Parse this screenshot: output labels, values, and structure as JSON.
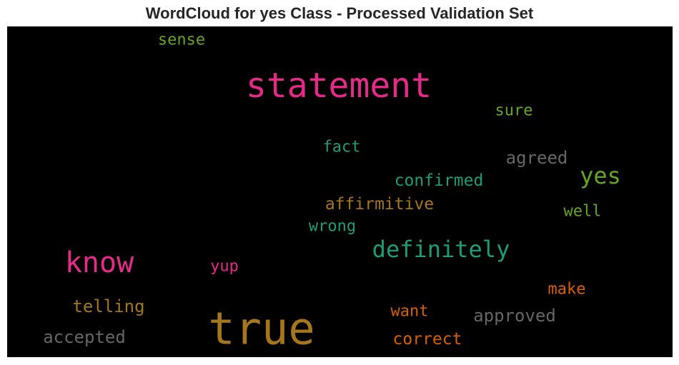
{
  "chart_data": {
    "type": "wordcloud",
    "title": "WordCloud for yes Class - Processed Validation Set",
    "background": "#000000",
    "words": [
      {
        "text": "sense",
        "color": "#66a61e",
        "weight": 22
      },
      {
        "text": "statement",
        "color": "#e7298a",
        "weight": 48
      },
      {
        "text": "sure",
        "color": "#66a61e",
        "weight": 22
      },
      {
        "text": "fact",
        "color": "#1b9e77",
        "weight": 22
      },
      {
        "text": "agreed",
        "color": "#666666",
        "weight": 24
      },
      {
        "text": "confirmed",
        "color": "#1b9e77",
        "weight": 23
      },
      {
        "text": "yes",
        "color": "#66a61e",
        "weight": 32
      },
      {
        "text": "affirmitive",
        "color": "#a6761d",
        "weight": 23
      },
      {
        "text": "well",
        "color": "#66a61e",
        "weight": 22
      },
      {
        "text": "wrong",
        "color": "#1b9e77",
        "weight": 22
      },
      {
        "text": "definitely",
        "color": "#1b9e77",
        "weight": 32
      },
      {
        "text": "know",
        "color": "#e7298a",
        "weight": 40
      },
      {
        "text": "yup",
        "color": "#e7298a",
        "weight": 22
      },
      {
        "text": "make",
        "color": "#d95f02",
        "weight": 22
      },
      {
        "text": "telling",
        "color": "#a6761d",
        "weight": 24
      },
      {
        "text": "true",
        "color": "#a6761d",
        "weight": 62
      },
      {
        "text": "want",
        "color": "#d95f02",
        "weight": 22
      },
      {
        "text": "approved",
        "color": "#666666",
        "weight": 24
      },
      {
        "text": "accepted",
        "color": "#666666",
        "weight": 24
      },
      {
        "text": "correct",
        "color": "#d95f02",
        "weight": 23
      }
    ]
  }
}
